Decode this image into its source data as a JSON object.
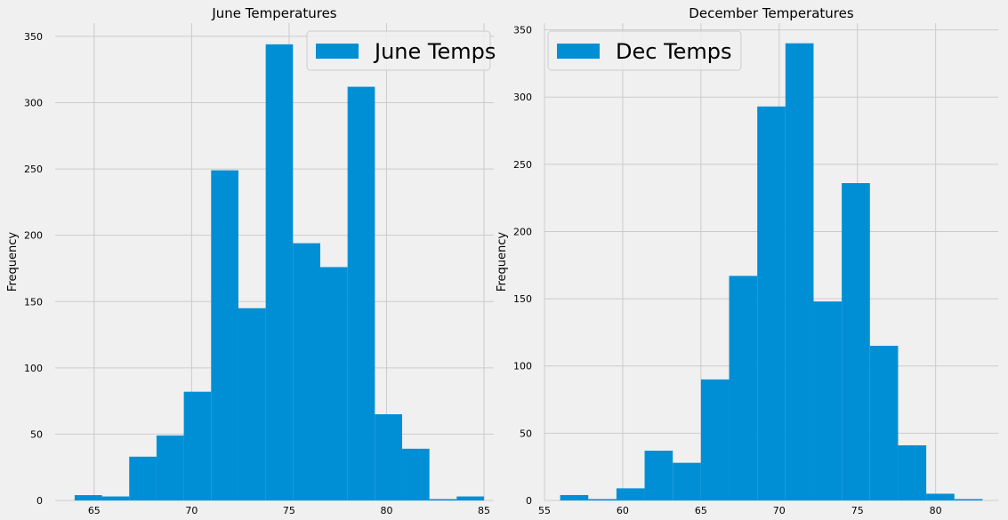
{
  "chart_data": [
    {
      "type": "bar",
      "title": "June Temperatures",
      "xlabel": "",
      "ylabel": "Frequency",
      "xlim": [
        63,
        85.5
      ],
      "ylim": [
        0,
        360
      ],
      "xticks": [
        65,
        70,
        75,
        80,
        85
      ],
      "yticks": [
        0,
        50,
        100,
        150,
        200,
        250,
        300,
        350
      ],
      "grid": true,
      "legend": {
        "label": "June Temps",
        "placement": "top-right"
      },
      "color": "#008fd5",
      "bins": [
        {
          "x0": 64.0,
          "x1": 65.4,
          "count": 4
        },
        {
          "x0": 65.4,
          "x1": 66.8,
          "count": 3
        },
        {
          "x0": 66.8,
          "x1": 68.2,
          "count": 33
        },
        {
          "x0": 68.2,
          "x1": 69.6,
          "count": 49
        },
        {
          "x0": 69.6,
          "x1": 71.0,
          "count": 82
        },
        {
          "x0": 71.0,
          "x1": 72.4,
          "count": 249
        },
        {
          "x0": 72.4,
          "x1": 73.8,
          "count": 145
        },
        {
          "x0": 73.8,
          "x1": 75.2,
          "count": 344
        },
        {
          "x0": 75.2,
          "x1": 76.6,
          "count": 194
        },
        {
          "x0": 76.6,
          "x1": 78.0,
          "count": 176
        },
        {
          "x0": 78.0,
          "x1": 79.4,
          "count": 312
        },
        {
          "x0": 79.4,
          "x1": 80.8,
          "count": 65
        },
        {
          "x0": 80.8,
          "x1": 82.2,
          "count": 39
        },
        {
          "x0": 82.2,
          "x1": 83.6,
          "count": 1
        },
        {
          "x0": 83.6,
          "x1": 85.0,
          "count": 3
        }
      ]
    },
    {
      "type": "bar",
      "title": "December Temperatures",
      "xlabel": "",
      "ylabel": "Frequency",
      "xlim": [
        55,
        84
      ],
      "ylim": [
        0,
        355
      ],
      "xticks": [
        55,
        60,
        65,
        70,
        75,
        80
      ],
      "yticks": [
        0,
        50,
        100,
        150,
        200,
        250,
        300,
        350
      ],
      "grid": true,
      "legend": {
        "label": "Dec Temps",
        "placement": "top-left"
      },
      "color": "#008fd5",
      "bins": [
        {
          "x0": 56.0,
          "x1": 57.8,
          "count": 4
        },
        {
          "x0": 57.8,
          "x1": 59.6,
          "count": 1
        },
        {
          "x0": 59.6,
          "x1": 61.4,
          "count": 9
        },
        {
          "x0": 61.4,
          "x1": 63.2,
          "count": 37
        },
        {
          "x0": 63.2,
          "x1": 65.0,
          "count": 28
        },
        {
          "x0": 65.0,
          "x1": 66.8,
          "count": 90
        },
        {
          "x0": 66.8,
          "x1": 68.6,
          "count": 167
        },
        {
          "x0": 68.6,
          "x1": 70.4,
          "count": 293
        },
        {
          "x0": 70.4,
          "x1": 72.2,
          "count": 340
        },
        {
          "x0": 72.2,
          "x1": 74.0,
          "count": 148
        },
        {
          "x0": 74.0,
          "x1": 75.8,
          "count": 236
        },
        {
          "x0": 75.8,
          "x1": 77.6,
          "count": 115
        },
        {
          "x0": 77.6,
          "x1": 79.4,
          "count": 41
        },
        {
          "x0": 79.4,
          "x1": 81.2,
          "count": 5
        },
        {
          "x0": 81.2,
          "x1": 83.0,
          "count": 1
        }
      ]
    }
  ]
}
